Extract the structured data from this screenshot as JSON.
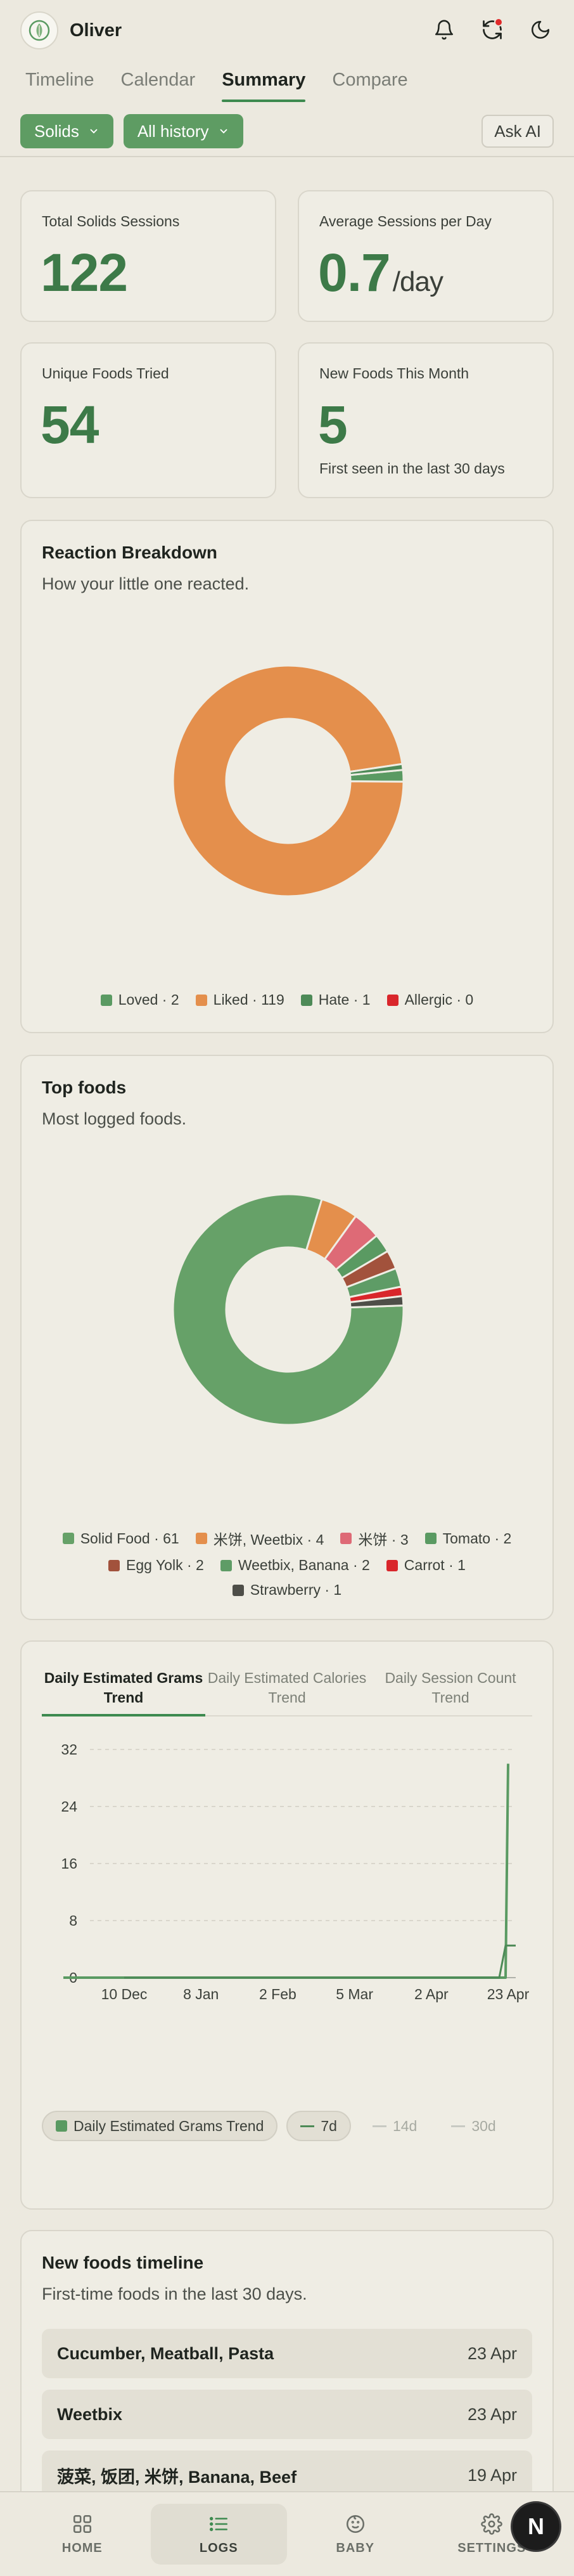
{
  "header": {
    "title": "Oliver",
    "icons": [
      "baby-logo-icon",
      "bell-icon",
      "sync-icon",
      "moon-icon"
    ]
  },
  "tabs": [
    {
      "label": "Timeline",
      "active": false
    },
    {
      "label": "Calendar",
      "active": false
    },
    {
      "label": "Summary",
      "active": true
    },
    {
      "label": "Compare",
      "active": false
    }
  ],
  "filters": {
    "type_label": "Solids",
    "range_label": "All history",
    "ask_ai_label": "Ask AI"
  },
  "stats": {
    "total_sessions": {
      "label": "Total Solids Sessions",
      "value": "122"
    },
    "avg_per_day": {
      "label": "Average Sessions per Day",
      "value": "0.7",
      "unit": "/day"
    },
    "unique_foods": {
      "label": "Unique Foods Tried",
      "value": "54"
    },
    "new_foods_month": {
      "label": "New Foods This Month",
      "value": "5",
      "sub": "First seen in the last 30 days"
    }
  },
  "reaction": {
    "title": "Reaction Breakdown",
    "subtitle": "How your little one reacted.",
    "legend": [
      {
        "label": "Loved · 2",
        "color": "#5a9a62"
      },
      {
        "label": "Liked · 119",
        "color": "#e48f4c"
      },
      {
        "label": "Hate · 1",
        "color": "#4d8a57"
      },
      {
        "label": "Allergic · 0",
        "color": "#d9262b"
      }
    ]
  },
  "top_foods": {
    "title": "Top foods",
    "subtitle": "Most logged foods.",
    "legend": [
      {
        "label": "Solid Food · 61",
        "color": "#66a168"
      },
      {
        "label": "米饼, Weetbix · 4",
        "color": "#e48f4c"
      },
      {
        "label": "米饼 · 3",
        "color": "#de6a76"
      },
      {
        "label": "Tomato · 2",
        "color": "#5a9a62"
      },
      {
        "label": "Egg Yolk · 2",
        "color": "#a2523c"
      },
      {
        "label": "Weetbix, Banana · 2",
        "color": "#5e9c66"
      },
      {
        "label": "Carrot · 1",
        "color": "#d9262b"
      },
      {
        "label": "Strawberry · 1",
        "color": "#4e4e48"
      }
    ]
  },
  "trend": {
    "tabs": [
      {
        "label": "Daily Estimated Grams Trend",
        "active": true
      },
      {
        "label": "Daily Estimated Calories Trend",
        "active": false
      },
      {
        "label": "Daily Session Count Trend",
        "active": false
      }
    ],
    "legend": [
      {
        "label": "Daily Estimated Grams Trend",
        "state": "on"
      },
      {
        "label": "7d",
        "state": "on"
      },
      {
        "label": "14d",
        "state": "off"
      },
      {
        "label": "30d",
        "state": "off"
      }
    ],
    "series_color": "#5a9a62"
  },
  "new_foods": {
    "title": "New foods timeline",
    "subtitle": "First-time foods in the last 30 days.",
    "items": [
      {
        "name": "Cucumber, Meatball, Pasta",
        "date": "23 Apr"
      },
      {
        "name": "Weetbix",
        "date": "23 Apr"
      },
      {
        "name": "菠菜, 饭团, 米饼, Banana, Beef",
        "date": "19 Apr"
      }
    ]
  },
  "bottom_nav": [
    {
      "label": "HOME",
      "icon": "grid-icon",
      "active": false
    },
    {
      "label": "LOGS",
      "icon": "list-icon",
      "active": true
    },
    {
      "label": "BABY",
      "icon": "baby-face-icon",
      "active": false
    },
    {
      "label": "SETTINGS",
      "icon": "gear-icon",
      "active": false
    }
  ],
  "fab_label": "N",
  "chart_data": [
    {
      "type": "pie",
      "title": "Reaction Breakdown",
      "categories": [
        "Loved",
        "Liked",
        "Hate",
        "Allergic"
      ],
      "values": [
        2,
        119,
        1,
        0
      ],
      "colors": [
        "#5a9a62",
        "#e48f4c",
        "#4d8a57",
        "#d9262b"
      ],
      "donut": true
    },
    {
      "type": "pie",
      "title": "Top foods",
      "categories": [
        "Solid Food",
        "米饼, Weetbix",
        "米饼",
        "Tomato",
        "Egg Yolk",
        "Weetbix, Banana",
        "Carrot",
        "Strawberry"
      ],
      "values": [
        61,
        4,
        3,
        2,
        2,
        2,
        1,
        1
      ],
      "colors": [
        "#66a168",
        "#e48f4c",
        "#de6a76",
        "#5a9a62",
        "#a2523c",
        "#5e9c66",
        "#d9262b",
        "#4e4e48"
      ],
      "donut": true
    },
    {
      "type": "line",
      "title": "Daily Estimated Grams Trend",
      "x_tick_labels": [
        "10 Dec",
        "8 Jan",
        "2 Feb",
        "5 Mar",
        "2 Apr",
        "23 Apr"
      ],
      "y_ticks": [
        0,
        8,
        16,
        24,
        32
      ],
      "ylim": [
        0,
        32
      ],
      "grid": true,
      "series": [
        {
          "name": "Daily Estimated Grams Trend",
          "x": [
            "10 Dec",
            "8 Jan",
            "2 Feb",
            "5 Mar",
            "2 Apr",
            "19 Apr",
            "22 Apr",
            "23 Apr"
          ],
          "values": [
            0,
            0,
            0,
            0,
            0,
            0,
            0,
            30
          ]
        },
        {
          "name": "7d",
          "x": [
            "10 Dec",
            "8 Jan",
            "2 Feb",
            "5 Mar",
            "2 Apr",
            "19 Apr",
            "22 Apr",
            "23 Apr"
          ],
          "values": [
            0,
            0,
            0,
            0,
            0,
            0,
            4.5,
            4.5
          ]
        }
      ]
    }
  ]
}
